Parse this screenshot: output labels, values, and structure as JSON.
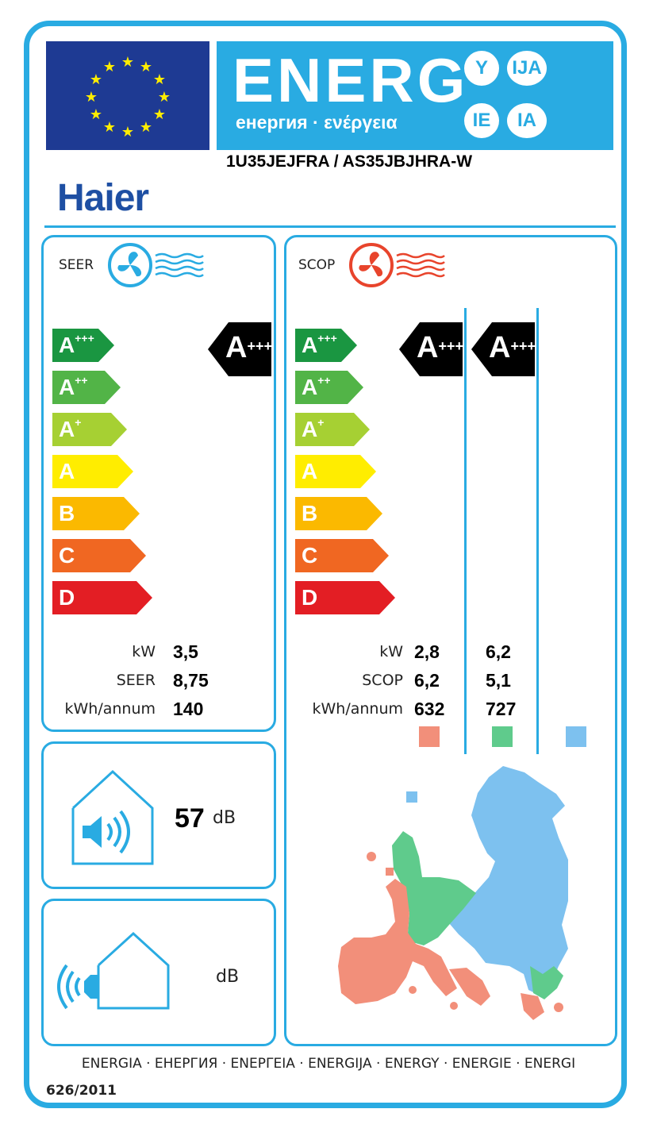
{
  "header": {
    "energy_word": "ENERG",
    "energy_sub": "енергия · ενέργεια",
    "lang_suffixes": [
      "Y",
      "IJA",
      "IE",
      "IA"
    ],
    "model": "1U35JEJFRA / AS35JBJHRA-W",
    "brand": "Haier"
  },
  "scale": [
    {
      "letter": "A",
      "sup": "+++",
      "color": "#1a9641"
    },
    {
      "letter": "A",
      "sup": "++",
      "color": "#52b447"
    },
    {
      "letter": "A",
      "sup": "+",
      "color": "#a6d033"
    },
    {
      "letter": "A",
      "sup": "",
      "color": "#ffed00"
    },
    {
      "letter": "B",
      "sup": "",
      "color": "#fbb900"
    },
    {
      "letter": "C",
      "sup": "",
      "color": "#f06722"
    },
    {
      "letter": "D",
      "sup": "",
      "color": "#e31e24"
    }
  ],
  "cooling": {
    "title": "SEER",
    "rating": {
      "letter": "A",
      "sup": "+++"
    },
    "rows": [
      {
        "label": "kW",
        "value": "3,5"
      },
      {
        "label": "SEER",
        "value": "8,75"
      },
      {
        "label": "kWh/annum",
        "value": "140"
      }
    ]
  },
  "heating": {
    "title": "SCOP",
    "ratings": [
      {
        "letter": "A",
        "sup": "+++"
      },
      {
        "letter": "A",
        "sup": "+++"
      }
    ],
    "labels": [
      "kW",
      "SCOP",
      "kWh/annum"
    ],
    "col1": [
      "2,8",
      "6,2",
      "632"
    ],
    "col2": [
      "6,2",
      "5,1",
      "727"
    ],
    "zone_colors": [
      "#f28f7a",
      "#5fcb8c",
      "#7dc1ef"
    ]
  },
  "noise_indoor": {
    "value": "57",
    "unit": "dB"
  },
  "noise_outdoor": {
    "value": "",
    "unit": "dB"
  },
  "footer": {
    "languages": "ENERGIA · ЕНЕРГИЯ · ΕΝΕΡΓΕΙΑ · ENERGIJA · ENERGY · ENERGIE · ENERGI",
    "regulation": "626/2011"
  },
  "colors": {
    "accent": "#29abe2",
    "eu_blue": "#1e3a93",
    "rating_black": "#000000"
  }
}
